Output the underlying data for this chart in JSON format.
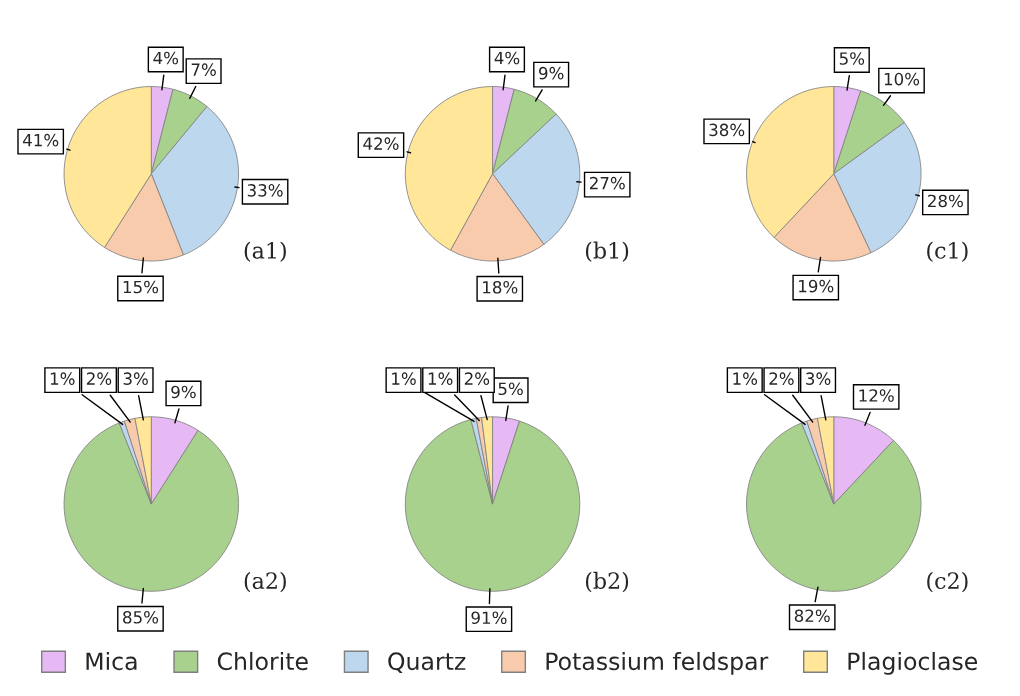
{
  "chart_data": [
    {
      "type": "pie",
      "categories": [
        "Mica",
        "Chlorite",
        "Quartz",
        "Potassium feldspar",
        "Plagioclase"
      ],
      "values": [
        4,
        7,
        33,
        15,
        41
      ],
      "value_labels": [
        "4%",
        "7%",
        "33%",
        "15%",
        "41%"
      ],
      "colors": [
        "#e6b9f5",
        "#a9d18e",
        "#bdd7ee",
        "#f8cbad",
        "#ffe699"
      ],
      "annotations": [
        "(a1)"
      ],
      "legend": "bottom"
    },
    {
      "type": "pie",
      "values": [
        4,
        9,
        27,
        18,
        42
      ],
      "value_labels": [
        "4%",
        "9%",
        "27%",
        "18%",
        "42%"
      ],
      "colors": [
        "#e6b9f5",
        "#a9d18e",
        "#bdd7ee",
        "#f8cbad",
        "#ffe699"
      ],
      "annotations": [
        "(b1)"
      ]
    },
    {
      "type": "pie",
      "values": [
        5,
        10,
        28,
        19,
        38
      ],
      "value_labels": [
        "5%",
        "10%",
        "28%",
        "19%",
        "38%"
      ],
      "colors": [
        "#e6b9f5",
        "#a9d18e",
        "#bdd7ee",
        "#f8cbad",
        "#ffe699"
      ],
      "annotations": [
        "(c1)"
      ]
    },
    {
      "type": "pie",
      "values": [
        9,
        85,
        1,
        2,
        3
      ],
      "value_labels": [
        "9%",
        "85%",
        "1%",
        "2%",
        "3%"
      ],
      "colors": [
        "#e6b9f5",
        "#a9d18e",
        "#bdd7ee",
        "#f8cbad",
        "#ffe699"
      ],
      "annotations": [
        "(a2)"
      ]
    },
    {
      "type": "pie",
      "values": [
        5,
        91,
        1,
        1,
        2
      ],
      "value_labels": [
        "5%",
        "91%",
        "1%",
        "1%",
        "2%"
      ],
      "colors": [
        "#e6b9f5",
        "#a9d18e",
        "#bdd7ee",
        "#f8cbad",
        "#ffe699"
      ],
      "annotations": [
        "(b2)"
      ]
    },
    {
      "type": "pie",
      "values": [
        12,
        82,
        1,
        2,
        3
      ],
      "value_labels": [
        "12%",
        "82%",
        "1%",
        "2%",
        "3%"
      ],
      "colors": [
        "#e6b9f5",
        "#a9d18e",
        "#bdd7ee",
        "#f8cbad",
        "#ffe699"
      ],
      "annotations": [
        "(c2)"
      ]
    }
  ]
}
